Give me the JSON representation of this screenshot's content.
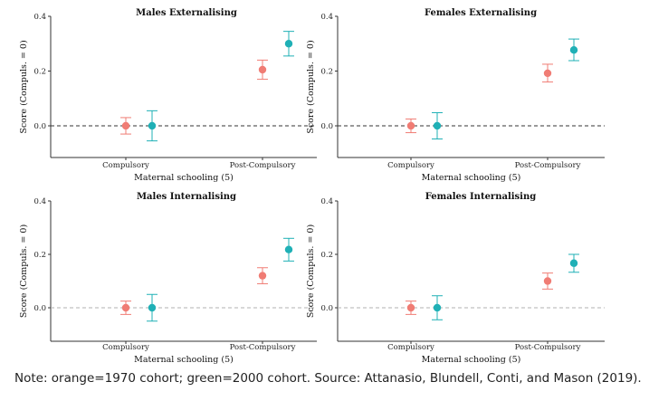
{
  "colors": {
    "cohort_1970": "#f07c74",
    "cohort_2000": "#1fb0b6"
  },
  "note": "Note: orange=1970 cohort; green=2000 cohort. Source: Attanasio, Blundell, Conti, and Mason (2019).",
  "chart_data": [
    {
      "type": "scatter",
      "title": "Males Externalising",
      "xlabel": "Maternal schooling (5)",
      "ylabel": "Score (Compuls. = 0)",
      "categories": [
        "Compulsory",
        "Post-Compulsory"
      ],
      "ylim": [
        -0.12,
        0.43
      ],
      "yticks": [
        0.0,
        0.2,
        0.4
      ],
      "ytick_labels": [
        "0.0",
        "0.2",
        "0.4"
      ],
      "reference_line": {
        "y": 0,
        "style": "dashed",
        "color": "#333333"
      },
      "series": [
        {
          "color": "#f07c74",
          "values": [
            0.0,
            0.205
          ],
          "lower": [
            -0.03,
            0.17
          ],
          "upper": [
            0.03,
            0.24
          ]
        },
        {
          "color": "#1fb0b6",
          "values": [
            0.0,
            0.3
          ],
          "lower": [
            -0.055,
            0.255
          ],
          "upper": [
            0.055,
            0.345
          ]
        }
      ]
    },
    {
      "type": "scatter",
      "title": "Females Externalising",
      "xlabel": "Maternal schooling (5)",
      "ylabel": "Score (Compuls. = 0)",
      "categories": [
        "Compulsory",
        "Post-Compulsory"
      ],
      "ylim": [
        -0.12,
        0.43
      ],
      "yticks": [
        0.0,
        0.2,
        0.4
      ],
      "ytick_labels": [
        "0.0",
        "0.2",
        "0.4"
      ],
      "reference_line": {
        "y": 0,
        "style": "dashed",
        "color": "#333333"
      },
      "series": [
        {
          "color": "#f07c74",
          "values": [
            0.0,
            0.192
          ],
          "lower": [
            -0.025,
            0.16
          ],
          "upper": [
            0.025,
            0.225
          ]
        },
        {
          "color": "#1fb0b6",
          "values": [
            0.0,
            0.277
          ],
          "lower": [
            -0.048,
            0.238
          ],
          "upper": [
            0.048,
            0.317
          ]
        }
      ]
    },
    {
      "type": "scatter",
      "title": "Males Internalising",
      "xlabel": "Maternal schooling (5)",
      "ylabel": "Score (Compuls. = 0)",
      "categories": [
        "Compulsory",
        "Post-Compulsory"
      ],
      "ylim": [
        -0.12,
        0.43
      ],
      "yticks": [
        0.0,
        0.2,
        0.4
      ],
      "ytick_labels": [
        "0.0",
        "0.2",
        "0.4"
      ],
      "reference_line": {
        "y": 0,
        "style": "dashed",
        "color": "#b0b0b0"
      },
      "series": [
        {
          "color": "#f07c74",
          "values": [
            0.0,
            0.12
          ],
          "lower": [
            -0.025,
            0.09
          ],
          "upper": [
            0.025,
            0.15
          ]
        },
        {
          "color": "#1fb0b6",
          "values": [
            0.0,
            0.218
          ],
          "lower": [
            -0.05,
            0.175
          ],
          "upper": [
            0.05,
            0.26
          ]
        }
      ]
    },
    {
      "type": "scatter",
      "title": "Females Internalising",
      "xlabel": "Maternal schooling (5)",
      "ylabel": "Score (Compuls. = 0)",
      "categories": [
        "Compulsory",
        "Post-Compulsory"
      ],
      "ylim": [
        -0.12,
        0.43
      ],
      "yticks": [
        0.0,
        0.2,
        0.4
      ],
      "ytick_labels": [
        "0.0",
        "0.2",
        "0.4"
      ],
      "reference_line": {
        "y": 0,
        "style": "dashed",
        "color": "#b0b0b0"
      },
      "series": [
        {
          "color": "#f07c74",
          "values": [
            0.0,
            0.1
          ],
          "lower": [
            -0.025,
            0.07
          ],
          "upper": [
            0.025,
            0.13
          ]
        },
        {
          "color": "#1fb0b6",
          "values": [
            0.0,
            0.167
          ],
          "lower": [
            -0.045,
            0.133
          ],
          "upper": [
            0.045,
            0.2
          ]
        }
      ]
    }
  ]
}
